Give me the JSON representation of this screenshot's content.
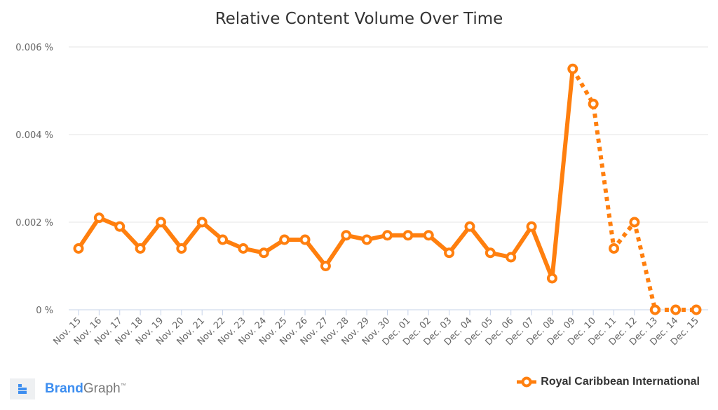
{
  "chart_data": {
    "type": "line",
    "title": "Relative Content Volume Over Time",
    "xlabel": "",
    "ylabel": "",
    "ylim": [
      0,
      0.006
    ],
    "yticks": [
      0,
      0.002,
      0.004,
      0.006
    ],
    "ytick_labels": [
      "0 %",
      "0.002 %",
      "0.004 %",
      "0.006 %"
    ],
    "grid": true,
    "legend_position": "bottom-right",
    "categories": [
      "Nov. 15",
      "Nov. 16",
      "Nov. 17",
      "Nov. 18",
      "Nov. 19",
      "Nov. 20",
      "Nov. 21",
      "Nov. 22",
      "Nov. 23",
      "Nov. 24",
      "Nov. 25",
      "Nov. 26",
      "Nov. 27",
      "Nov. 28",
      "Nov. 29",
      "Nov. 30",
      "Dec. 01",
      "Dec. 02",
      "Dec. 03",
      "Dec. 04",
      "Dec. 05",
      "Dec. 06",
      "Dec. 07",
      "Dec. 08",
      "Dec. 09",
      "Dec. 10",
      "Dec. 11",
      "Dec. 12",
      "Dec. 13",
      "Dec. 14",
      "Dec. 15"
    ],
    "series": [
      {
        "name": "Royal Caribbean International",
        "color": "#ff7f0e",
        "values": [
          0.0014,
          0.0021,
          0.0019,
          0.0014,
          0.002,
          0.0014,
          0.002,
          0.0016,
          0.0014,
          0.0013,
          0.0016,
          0.0016,
          0.001,
          0.0017,
          0.0016,
          0.0017,
          0.0017,
          0.0017,
          0.0013,
          0.0019,
          0.0013,
          0.0012,
          0.0019,
          0.00072,
          0.0055,
          0.0047,
          0.0014,
          0.002,
          0,
          0,
          0
        ],
        "dashed_from_index": 24
      }
    ]
  },
  "branding": {
    "brand": "Brand",
    "graph": "Graph",
    "tm": "™"
  }
}
